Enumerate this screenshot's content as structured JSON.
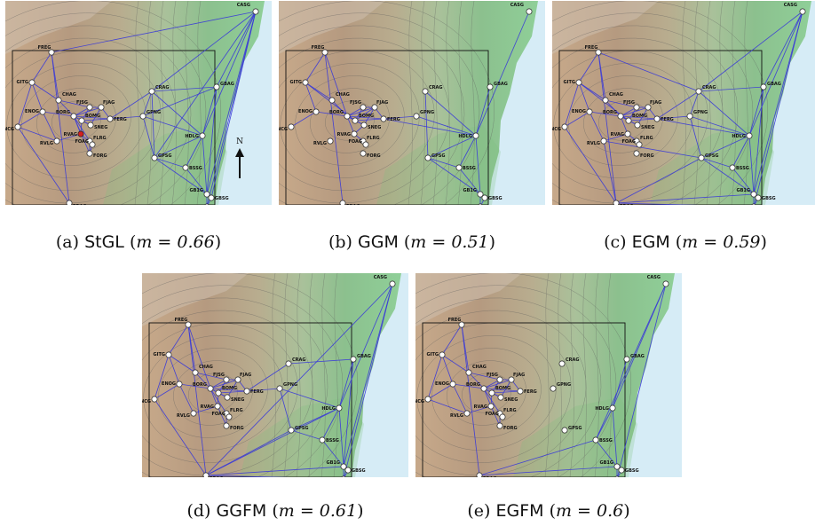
{
  "figure": {
    "compass_label": "N",
    "colors": {
      "sea": "#d6ecf6",
      "edge": "#3a3ad8",
      "node_fill": "#ffffff",
      "node_stroke": "#222222",
      "highlight": "#d42020",
      "frame": "#111111"
    },
    "stations": [
      "CASG",
      "FREG",
      "GITG",
      "CHAG",
      "ENOG",
      "CNCG",
      "BORG",
      "BOMG",
      "FJSG",
      "FJAG",
      "FERG",
      "SNEG",
      "RVLG",
      "RVAG",
      "FLRG",
      "FOAG",
      "FORG",
      "CRAG",
      "GPNG",
      "GBAG",
      "HDLG",
      "GPSG",
      "BSSG",
      "GB1G",
      "GBSG",
      "TRCG",
      "PRAG"
    ],
    "panels": [
      {
        "id": "a",
        "letter": "(a)",
        "method": "StGL",
        "m_expr": "m = 0.66",
        "edges": [
          [
            "FREG",
            "GITG"
          ],
          [
            "FREG",
            "CHAG"
          ],
          [
            "FREG",
            "PRAG"
          ],
          [
            "FREG",
            "CASG"
          ],
          [
            "GITG",
            "ENOG"
          ],
          [
            "GITG",
            "CHAG"
          ],
          [
            "GITG",
            "CNCG"
          ],
          [
            "ENOG",
            "CNCG"
          ],
          [
            "ENOG",
            "BORG"
          ],
          [
            "ENOG",
            "RVLG"
          ],
          [
            "CNCG",
            "RVLG"
          ],
          [
            "CNCG",
            "PRAG"
          ],
          [
            "CHAG",
            "BORG"
          ],
          [
            "CHAG",
            "FJSG"
          ],
          [
            "BORG",
            "BOMG"
          ],
          [
            "BORG",
            "FJSG"
          ],
          [
            "BORG",
            "FJAG"
          ],
          [
            "BORG",
            "SNEG"
          ],
          [
            "BORG",
            "RVAG"
          ],
          [
            "BORG",
            "FERG"
          ],
          [
            "BORG",
            "FLRG"
          ],
          [
            "BORG",
            "FORG"
          ],
          [
            "BOMG",
            "FJSG"
          ],
          [
            "BOMG",
            "FERG"
          ],
          [
            "BOMG",
            "SNEG"
          ],
          [
            "BOMG",
            "RVAG"
          ],
          [
            "FJSG",
            "FJAG"
          ],
          [
            "FJAG",
            "FERG"
          ],
          [
            "FJAG",
            "SNEG"
          ],
          [
            "FERG",
            "GPNG"
          ],
          [
            "FERG",
            "CRAG"
          ],
          [
            "RVAG",
            "RVLG"
          ],
          [
            "RVAG",
            "FOAG"
          ],
          [
            "FLRG",
            "FORG"
          ],
          [
            "FOAG",
            "FORG"
          ],
          [
            "CRAG",
            "GPNG"
          ],
          [
            "CRAG",
            "GBAG"
          ],
          [
            "CRAG",
            "CASG"
          ],
          [
            "CRAG",
            "HDLG"
          ],
          [
            "CRAG",
            "GPSG"
          ],
          [
            "GPNG",
            "HDLG"
          ],
          [
            "GPNG",
            "GPSG"
          ],
          [
            "GPNG",
            "GBAG"
          ],
          [
            "GBAG",
            "CASG"
          ],
          [
            "GBAG",
            "HDLG"
          ],
          [
            "GBAG",
            "GB1G"
          ],
          [
            "HDLG",
            "GPSG"
          ],
          [
            "HDLG",
            "BSSG"
          ],
          [
            "HDLG",
            "CASG"
          ],
          [
            "HDLG",
            "GB1G"
          ],
          [
            "GPSG",
            "BSSG"
          ],
          [
            "GPSG",
            "GB1G"
          ],
          [
            "BSSG",
            "GB1G"
          ],
          [
            "GB1G",
            "GBSG"
          ],
          [
            "GB1G",
            "TRCG"
          ],
          [
            "GBSG",
            "CASG"
          ],
          [
            "TRCG",
            "CASG"
          ],
          [
            "GB1G",
            "CASG"
          ],
          [
            "GBSG",
            "TRCG"
          ],
          [
            "CASG",
            "GPSG"
          ]
        ],
        "highlight": [
          "RVAG"
        ]
      },
      {
        "id": "b",
        "letter": "(b)",
        "method": "GGM",
        "m_expr": "m = 0.51",
        "edges": [
          [
            "FREG",
            "GITG"
          ],
          [
            "FREG",
            "PRAG"
          ],
          [
            "FREG",
            "BORG"
          ],
          [
            "GITG",
            "ENOG"
          ],
          [
            "GITG",
            "CHAG"
          ],
          [
            "GITG",
            "BOMG"
          ],
          [
            "ENOG",
            "CNCG"
          ],
          [
            "ENOG",
            "BORG"
          ],
          [
            "CHAG",
            "BORG"
          ],
          [
            "BORG",
            "BOMG"
          ],
          [
            "BORG",
            "FJSG"
          ],
          [
            "BORG",
            "FJAG"
          ],
          [
            "BORG",
            "SNEG"
          ],
          [
            "BORG",
            "RVAG"
          ],
          [
            "BORG",
            "FERG"
          ],
          [
            "BOMG",
            "FJSG"
          ],
          [
            "BOMG",
            "FJAG"
          ],
          [
            "BOMG",
            "FERG"
          ],
          [
            "BOMG",
            "SNEG"
          ],
          [
            "FJSG",
            "FJAG"
          ],
          [
            "FJAG",
            "FERG"
          ],
          [
            "FJAG",
            "SNEG"
          ],
          [
            "SNEG",
            "RVAG"
          ],
          [
            "RVAG",
            "FLRG"
          ],
          [
            "FERG",
            "GPNG"
          ],
          [
            "FERG",
            "HDLG"
          ],
          [
            "GPNG",
            "HDLG"
          ],
          [
            "CRAG",
            "HDLG"
          ],
          [
            "HDLG",
            "GBAG"
          ],
          [
            "HDLG",
            "GPSG"
          ],
          [
            "HDLG",
            "BSSG"
          ],
          [
            "HDLG",
            "GB1G"
          ],
          [
            "HDLG",
            "CASG"
          ],
          [
            "GPSG",
            "BSSG"
          ],
          [
            "BSSG",
            "GB1G"
          ],
          [
            "GB1G",
            "GBSG"
          ],
          [
            "GB1G",
            "TRCG"
          ],
          [
            "GBSG",
            "TRCG"
          ],
          [
            "CRAG",
            "GPSG"
          ],
          [
            "GPSG",
            "GB1G"
          ]
        ],
        "highlight": []
      },
      {
        "id": "c",
        "letter": "(c)",
        "method": "EGM",
        "m_expr": "m = 0.59",
        "edges": [
          [
            "FREG",
            "GITG"
          ],
          [
            "FREG",
            "CHAG"
          ],
          [
            "FREG",
            "PRAG"
          ],
          [
            "FREG",
            "CRAG"
          ],
          [
            "GITG",
            "ENOG"
          ],
          [
            "GITG",
            "CHAG"
          ],
          [
            "GITG",
            "CNCG"
          ],
          [
            "GITG",
            "BOMG"
          ],
          [
            "ENOG",
            "CNCG"
          ],
          [
            "ENOG",
            "BORG"
          ],
          [
            "ENOG",
            "RVLG"
          ],
          [
            "CNCG",
            "PRAG"
          ],
          [
            "CHAG",
            "BORG"
          ],
          [
            "CHAG",
            "FJSG"
          ],
          [
            "BORG",
            "BOMG"
          ],
          [
            "BORG",
            "FJSG"
          ],
          [
            "BORG",
            "FJAG"
          ],
          [
            "BORG",
            "SNEG"
          ],
          [
            "BORG",
            "RVAG"
          ],
          [
            "BORG",
            "FERG"
          ],
          [
            "BOMG",
            "FJSG"
          ],
          [
            "BOMG",
            "FERG"
          ],
          [
            "BOMG",
            "SNEG"
          ],
          [
            "FJSG",
            "FJAG"
          ],
          [
            "FJAG",
            "FERG"
          ],
          [
            "FJAG",
            "SNEG"
          ],
          [
            "FERG",
            "GPNG"
          ],
          [
            "FERG",
            "CRAG"
          ],
          [
            "FERG",
            "HDLG"
          ],
          [
            "RVAG",
            "RVLG"
          ],
          [
            "RVAG",
            "FLRG"
          ],
          [
            "RVLG",
            "PRAG"
          ],
          [
            "RVLG",
            "GPSG"
          ],
          [
            "CRAG",
            "GPNG"
          ],
          [
            "CRAG",
            "GBAG"
          ],
          [
            "CRAG",
            "CASG"
          ],
          [
            "CRAG",
            "HDLG"
          ],
          [
            "GPNG",
            "HDLG"
          ],
          [
            "GPNG",
            "GPSG"
          ],
          [
            "GBAG",
            "CASG"
          ],
          [
            "GBAG",
            "HDLG"
          ],
          [
            "GBAG",
            "GB1G"
          ],
          [
            "HDLG",
            "GPSG"
          ],
          [
            "HDLG",
            "BSSG"
          ],
          [
            "HDLG",
            "CASG"
          ],
          [
            "HDLG",
            "GB1G"
          ],
          [
            "GPSG",
            "BSSG"
          ],
          [
            "GPSG",
            "GB1G"
          ],
          [
            "GPSG",
            "PRAG"
          ],
          [
            "BSSG",
            "GB1G"
          ],
          [
            "GB1G",
            "GBSG"
          ],
          [
            "GB1G",
            "TRCG"
          ],
          [
            "GBSG",
            "TRCG"
          ],
          [
            "PRAG",
            "TRCG"
          ],
          [
            "PRAG",
            "GB1G"
          ],
          [
            "CASG",
            "GB1G"
          ],
          [
            "CASG",
            "TRCG"
          ]
        ],
        "highlight": []
      },
      {
        "id": "d",
        "letter": "(d)",
        "method": "GGFM",
        "m_expr": "m = 0.61",
        "edges": [
          [
            "FREG",
            "GITG"
          ],
          [
            "FREG",
            "CHAG"
          ],
          [
            "FREG",
            "PRAG"
          ],
          [
            "FREG",
            "BORG"
          ],
          [
            "GITG",
            "ENOG"
          ],
          [
            "GITG",
            "CHAG"
          ],
          [
            "GITG",
            "CNCG"
          ],
          [
            "ENOG",
            "CNCG"
          ],
          [
            "ENOG",
            "BORG"
          ],
          [
            "ENOG",
            "RVLG"
          ],
          [
            "CNCG",
            "PRAG"
          ],
          [
            "CHAG",
            "BORG"
          ],
          [
            "CHAG",
            "FJSG"
          ],
          [
            "BORG",
            "BOMG"
          ],
          [
            "BORG",
            "FJSG"
          ],
          [
            "BORG",
            "FJAG"
          ],
          [
            "BORG",
            "SNEG"
          ],
          [
            "BORG",
            "RVAG"
          ],
          [
            "BORG",
            "FERG"
          ],
          [
            "BORG",
            "FLRG"
          ],
          [
            "BOMG",
            "FJSG"
          ],
          [
            "BOMG",
            "FERG"
          ],
          [
            "BOMG",
            "SNEG"
          ],
          [
            "BOMG",
            "RVAG"
          ],
          [
            "FJSG",
            "FJAG"
          ],
          [
            "FJAG",
            "FERG"
          ],
          [
            "FJAG",
            "SNEG"
          ],
          [
            "FERG",
            "GPNG"
          ],
          [
            "FERG",
            "CRAG"
          ],
          [
            "RVAG",
            "RVLG"
          ],
          [
            "RVAG",
            "FORG"
          ],
          [
            "FLRG",
            "FORG"
          ],
          [
            "GPNG",
            "HDLG"
          ],
          [
            "GPNG",
            "GPSG"
          ],
          [
            "CRAG",
            "GBAG"
          ],
          [
            "HDLG",
            "GBAG"
          ],
          [
            "HDLG",
            "GPSG"
          ],
          [
            "HDLG",
            "BSSG"
          ],
          [
            "HDLG",
            "GB1G"
          ],
          [
            "HDLG",
            "PRAG"
          ],
          [
            "GBAG",
            "GB1G"
          ],
          [
            "GPSG",
            "BSSG"
          ],
          [
            "GPSG",
            "PRAG"
          ],
          [
            "BSSG",
            "GB1G"
          ],
          [
            "GB1G",
            "GBSG"
          ],
          [
            "GB1G",
            "TRCG"
          ],
          [
            "GBSG",
            "TRCG"
          ],
          [
            "PRAG",
            "TRCG"
          ],
          [
            "PRAG",
            "GB1G"
          ],
          [
            "CASG",
            "GB1G"
          ],
          [
            "CASG",
            "TRCG"
          ],
          [
            "CASG",
            "PRAG"
          ],
          [
            "CASG",
            "HDLG"
          ]
        ],
        "highlight": []
      },
      {
        "id": "e",
        "letter": "(e)",
        "method": "EGFM",
        "m_expr": "m = 0.6",
        "edges": [
          [
            "FREG",
            "GITG"
          ],
          [
            "FREG",
            "CHAG"
          ],
          [
            "FREG",
            "PRAG"
          ],
          [
            "GITG",
            "ENOG"
          ],
          [
            "GITG",
            "CHAG"
          ],
          [
            "GITG",
            "CNCG"
          ],
          [
            "ENOG",
            "CNCG"
          ],
          [
            "ENOG",
            "BORG"
          ],
          [
            "ENOG",
            "RVLG"
          ],
          [
            "CNCG",
            "RVLG"
          ],
          [
            "CHAG",
            "BORG"
          ],
          [
            "CHAG",
            "FJSG"
          ],
          [
            "BORG",
            "BOMG"
          ],
          [
            "BORG",
            "FJSG"
          ],
          [
            "BORG",
            "FJAG"
          ],
          [
            "BORG",
            "SNEG"
          ],
          [
            "BORG",
            "RVAG"
          ],
          [
            "BORG",
            "FERG"
          ],
          [
            "BORG",
            "FLRG"
          ],
          [
            "BOMG",
            "FJSG"
          ],
          [
            "BOMG",
            "FERG"
          ],
          [
            "BOMG",
            "SNEG"
          ],
          [
            "BOMG",
            "RVAG"
          ],
          [
            "FJSG",
            "FJAG"
          ],
          [
            "FJAG",
            "FERG"
          ],
          [
            "FJAG",
            "SNEG"
          ],
          [
            "RVAG",
            "RVLG"
          ],
          [
            "RVAG",
            "FORG"
          ],
          [
            "FLRG",
            "FORG"
          ],
          [
            "HDLG",
            "GBAG"
          ],
          [
            "HDLG",
            "BSSG"
          ],
          [
            "HDLG",
            "GB1G"
          ],
          [
            "HDLG",
            "CASG"
          ],
          [
            "BSSG",
            "GB1G"
          ],
          [
            "BSSG",
            "PRAG"
          ],
          [
            "GB1G",
            "GBSG"
          ],
          [
            "GB1G",
            "TRCG"
          ],
          [
            "GBSG",
            "TRCG"
          ],
          [
            "PRAG",
            "GB1G"
          ],
          [
            "CASG",
            "TRCG"
          ],
          [
            "CASG",
            "BSSG"
          ]
        ],
        "highlight": []
      }
    ]
  }
}
